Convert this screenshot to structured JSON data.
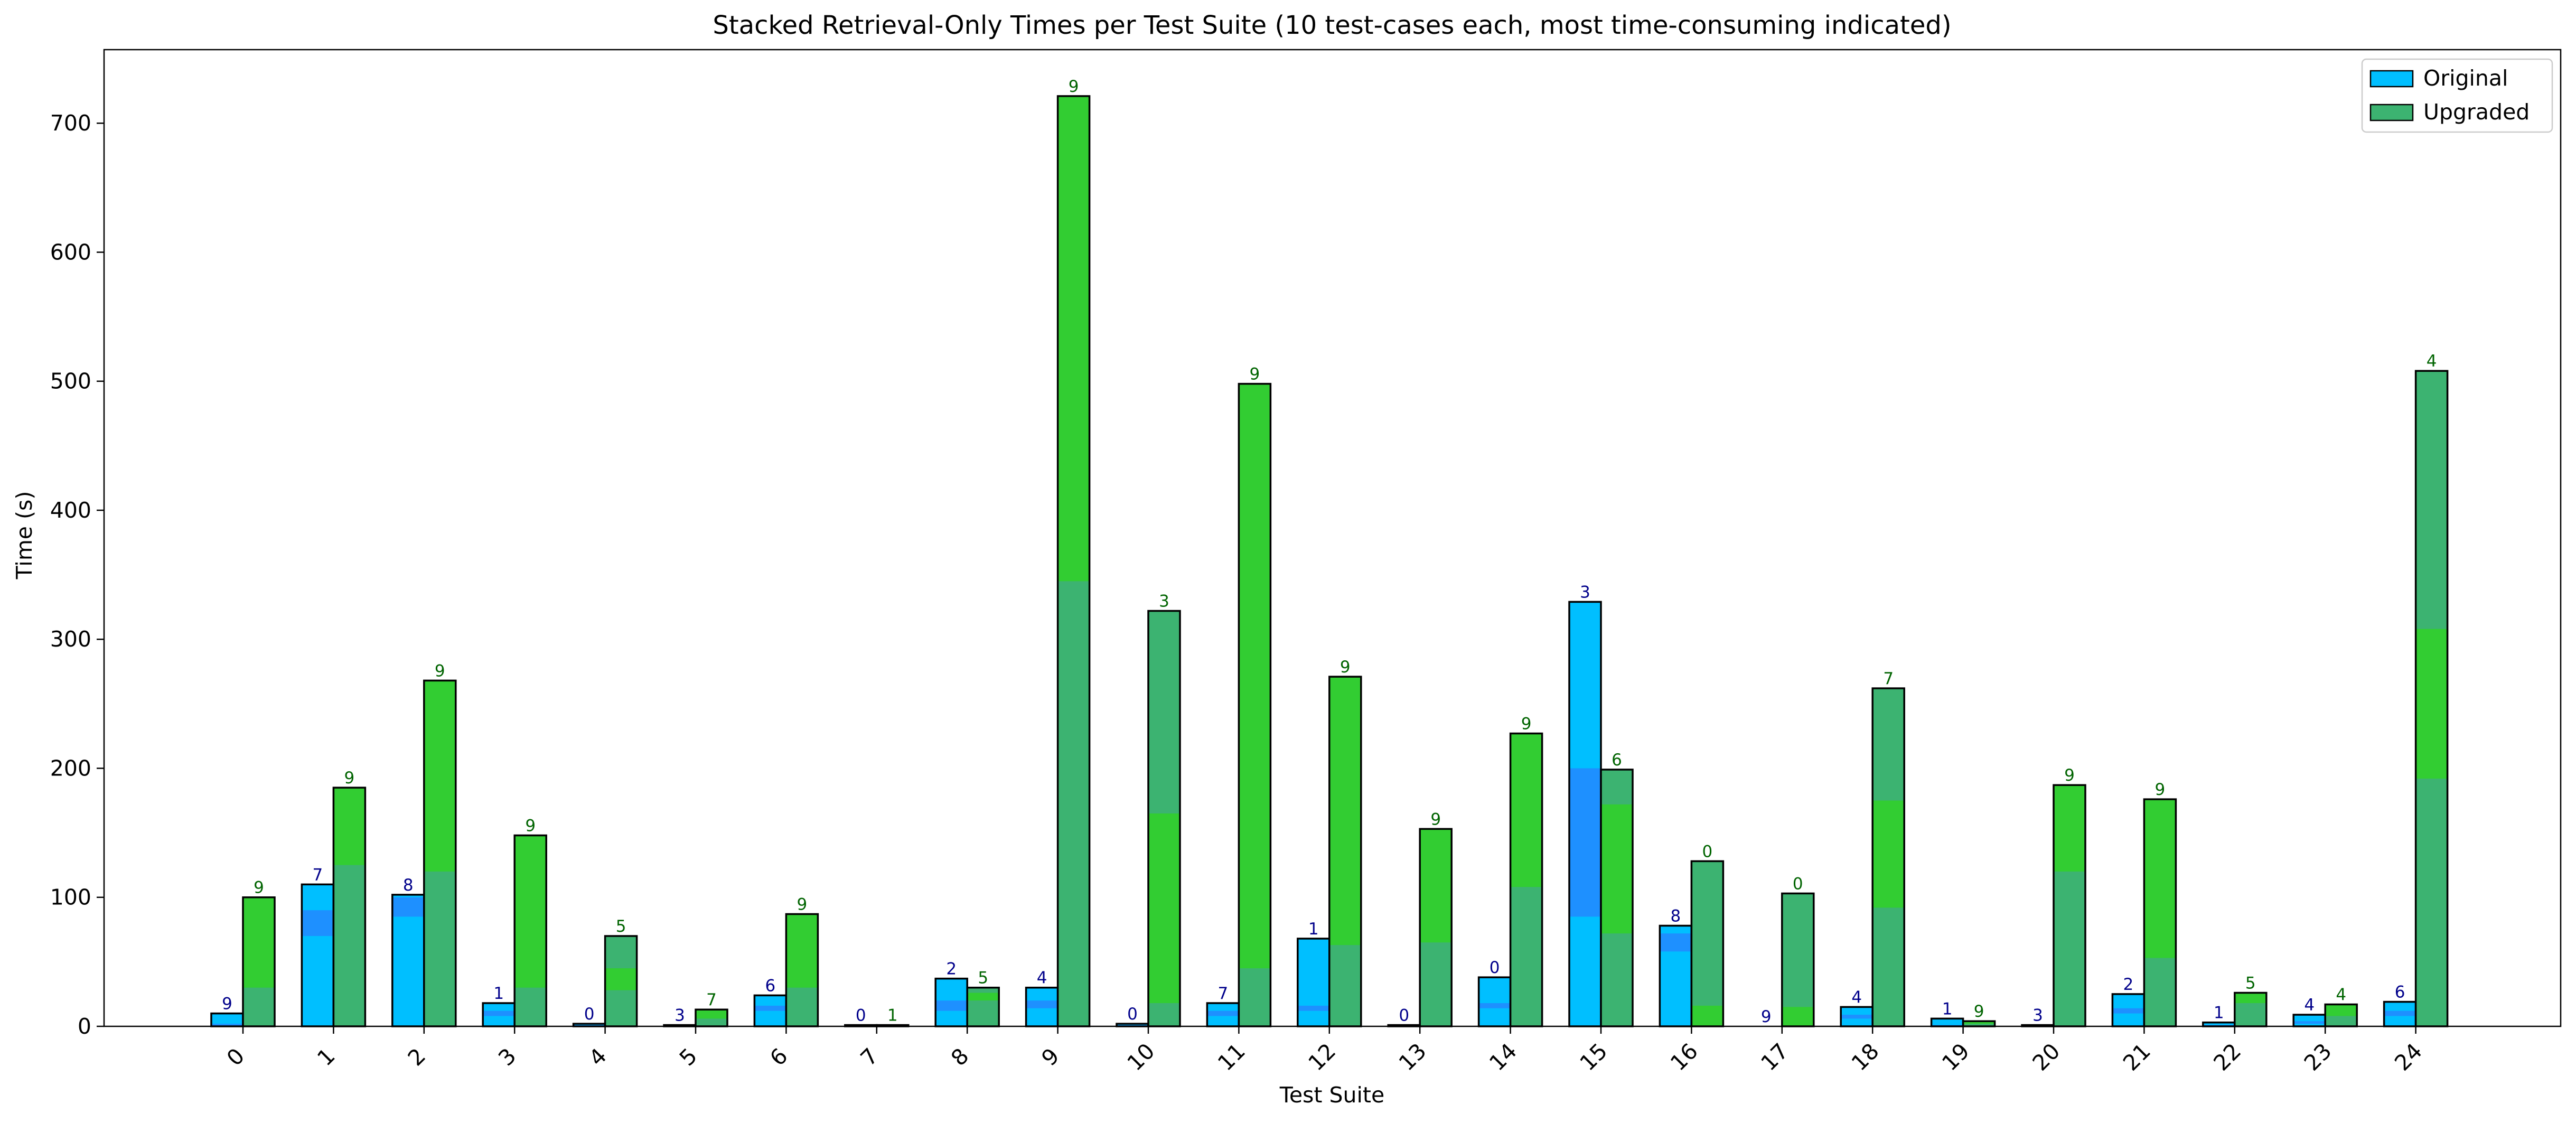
{
  "chart_data": {
    "type": "bar",
    "title": "Stacked Retrieval-Only Times per Test Suite (10 test-cases each, most time-consuming indicated)",
    "xlabel": "Test Suite",
    "ylabel": "Time (s)",
    "ylim": [
      0,
      757
    ],
    "yticks": [
      "0",
      "100",
      "200",
      "300",
      "400",
      "500",
      "600",
      "700"
    ],
    "categories": [
      "0",
      "1",
      "2",
      "3",
      "4",
      "5",
      "6",
      "7",
      "8",
      "9",
      "10",
      "11",
      "12",
      "13",
      "14",
      "15",
      "16",
      "17",
      "18",
      "19",
      "20",
      "21",
      "22",
      "23",
      "24"
    ],
    "legend_position": "top-right",
    "series": [
      {
        "name": "Original",
        "color": "#00bfff",
        "highlight_color": "#1e90ff",
        "label_color": "#00008b",
        "values": [
          10,
          110,
          102,
          18,
          2,
          1,
          24,
          1,
          37,
          30,
          2,
          18,
          68,
          1,
          38,
          329,
          78,
          0,
          15,
          6,
          1,
          25,
          3,
          9,
          19
        ],
        "top_case": [
          "9",
          "7",
          "8",
          "1",
          "0",
          "3",
          "6",
          "0",
          "2",
          "4",
          "0",
          "7",
          "1",
          "0",
          "0",
          "3",
          "8",
          "9",
          "4",
          "1",
          "3",
          "2",
          "1",
          "4",
          "6"
        ],
        "top_segment": [
          [
            0,
            2
          ],
          [
            70,
            90
          ],
          [
            85,
            100
          ],
          [
            8,
            12
          ],
          [
            0,
            1
          ],
          [
            0,
            1
          ],
          [
            12,
            16
          ],
          [
            0,
            1
          ],
          [
            12,
            20
          ],
          [
            14,
            20
          ],
          [
            0,
            1
          ],
          [
            8,
            12
          ],
          [
            12,
            16
          ],
          [
            0,
            1
          ],
          [
            14,
            18
          ],
          [
            85,
            200
          ],
          [
            58,
            72
          ],
          [
            0,
            0
          ],
          [
            6,
            9
          ],
          [
            0,
            1
          ],
          [
            0,
            1
          ],
          [
            10,
            14
          ],
          [
            0,
            1
          ],
          [
            2,
            4
          ],
          [
            8,
            12
          ]
        ]
      },
      {
        "name": "Upgraded",
        "color": "#3cb371",
        "highlight_color": "#32cd32",
        "label_color": "#006400",
        "values": [
          100,
          185,
          268,
          148,
          70,
          13,
          87,
          1,
          30,
          721,
          322,
          498,
          271,
          153,
          227,
          199,
          128,
          103,
          262,
          4,
          187,
          176,
          26,
          17,
          508
        ],
        "top_case": [
          "9",
          "9",
          "9",
          "9",
          "5",
          "7",
          "9",
          "1",
          "5",
          "9",
          "3",
          "9",
          "9",
          "9",
          "9",
          "6",
          "0",
          "0",
          "7",
          "9",
          "9",
          "9",
          "5",
          "4",
          "4"
        ],
        "top_segment": [
          [
            30,
            100
          ],
          [
            125,
            185
          ],
          [
            120,
            268
          ],
          [
            30,
            148
          ],
          [
            28,
            45
          ],
          [
            6,
            13
          ],
          [
            30,
            87
          ],
          [
            0,
            1
          ],
          [
            20,
            26
          ],
          [
            345,
            721
          ],
          [
            18,
            165
          ],
          [
            45,
            498
          ],
          [
            63,
            271
          ],
          [
            65,
            153
          ],
          [
            108,
            227
          ],
          [
            72,
            172
          ],
          [
            0,
            16
          ],
          [
            0,
            15
          ],
          [
            92,
            175
          ],
          [
            2,
            4
          ],
          [
            120,
            187
          ],
          [
            53,
            176
          ],
          [
            18,
            26
          ],
          [
            8,
            17
          ],
          [
            192,
            308
          ]
        ]
      }
    ]
  }
}
